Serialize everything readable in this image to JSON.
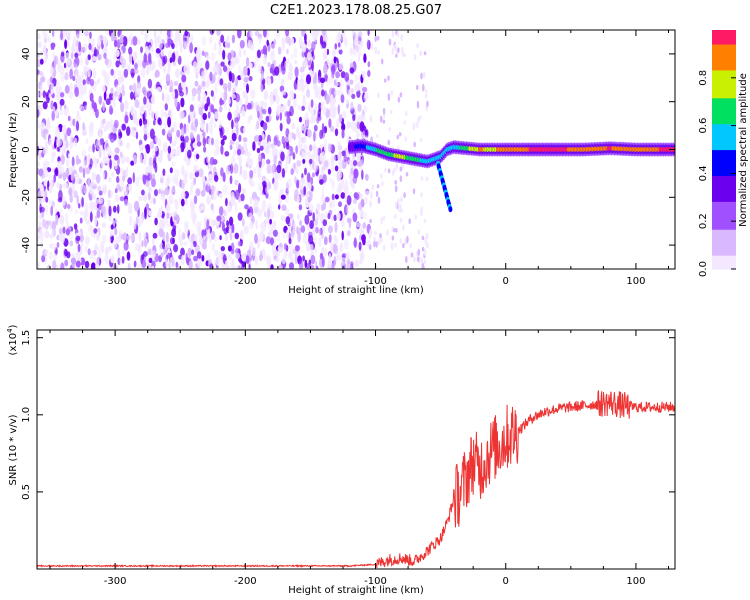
{
  "title": "C2E1.2023.178.08.25.G07",
  "colors": {
    "snr_line": "#ee3333",
    "cmap": [
      "#f3e8ff",
      "#d9b8ff",
      "#a050ff",
      "#6a00ee",
      "#0000ff",
      "#00c8ff",
      "#00e060",
      "#c8f000",
      "#ff8000",
      "#ff1a66"
    ]
  },
  "chart_data": [
    {
      "type": "heatmap",
      "xlabel": "Height of straight line (km)",
      "ylabel": "Frequency (Hz)",
      "xlim": [
        -360,
        130
      ],
      "ylim": [
        -50,
        50
      ],
      "xticks": [
        -300,
        -200,
        -100,
        0,
        100
      ],
      "yticks": [
        -40,
        -20,
        0,
        20,
        40
      ],
      "colorbar": {
        "label": "Normalized spectral amplitude",
        "range": [
          0,
          1
        ],
        "ticks": [
          "0.0",
          "0.2",
          "0.4",
          "0.6",
          "0.8"
        ],
        "tick_values": [
          0.0,
          0.2,
          0.4,
          0.6,
          0.8
        ]
      },
      "signal_track": [
        {
          "x": -120,
          "y": 1,
          "a": 0.35
        },
        {
          "x": -110,
          "y": 1.5,
          "a": 0.45
        },
        {
          "x": -100,
          "y": 0,
          "a": 0.6
        },
        {
          "x": -90,
          "y": -2,
          "a": 0.7
        },
        {
          "x": -80,
          "y": -3,
          "a": 0.75
        },
        {
          "x": -70,
          "y": -4,
          "a": 0.65
        },
        {
          "x": -60,
          "y": -5,
          "a": 0.55
        },
        {
          "x": -50,
          "y": -3,
          "a": 0.5
        },
        {
          "x": -45,
          "y": 0,
          "a": 0.5
        },
        {
          "x": -40,
          "y": 1,
          "a": 0.55
        },
        {
          "x": -30,
          "y": 0.5,
          "a": 0.7
        },
        {
          "x": -20,
          "y": 0,
          "a": 0.85
        },
        {
          "x": -10,
          "y": 0,
          "a": 0.8
        },
        {
          "x": 0,
          "y": 0,
          "a": 0.9
        },
        {
          "x": 20,
          "y": 0,
          "a": 0.95
        },
        {
          "x": 40,
          "y": 0,
          "a": 0.97
        },
        {
          "x": 60,
          "y": 0,
          "a": 0.9
        },
        {
          "x": 80,
          "y": 0.5,
          "a": 0.95
        },
        {
          "x": 100,
          "y": 0,
          "a": 0.9
        },
        {
          "x": 120,
          "y": 0,
          "a": 0.95
        },
        {
          "x": 130,
          "y": 0,
          "a": 0.95
        }
      ]
    },
    {
      "type": "line",
      "xlabel": "Height of straight line (km)",
      "ylabel": "SNR (10 * v/v)",
      "ylabel_exponent": "(x10",
      "ylabel_exponent_power": "4",
      "ylabel_exponent_close": ")",
      "xlim": [
        -360,
        130
      ],
      "ylim": [
        0,
        1.55
      ],
      "xticks": [
        -300,
        -200,
        -100,
        0,
        100
      ],
      "yticks": [
        0.5,
        1.0,
        1.5
      ],
      "ytick_labels": [
        "0.5",
        "1.0",
        "1.5"
      ],
      "series": [
        {
          "x": [
            -360,
            -300,
            -200,
            -150,
            -120,
            -100,
            -90,
            -80,
            -70,
            -60,
            -50,
            -45,
            -40,
            -35,
            -30,
            -25,
            -20,
            -15,
            -10,
            -5,
            0,
            10,
            20,
            30,
            40,
            60,
            80,
            90,
            100,
            110,
            120,
            130
          ],
          "y": [
            0.02,
            0.02,
            0.02,
            0.02,
            0.02,
            0.03,
            0.06,
            0.07,
            0.05,
            0.12,
            0.2,
            0.3,
            0.45,
            0.5,
            0.6,
            0.7,
            0.65,
            0.72,
            0.78,
            0.8,
            0.85,
            0.9,
            0.98,
            1.02,
            1.04,
            1.06,
            1.08,
            1.06,
            1.05,
            1.05,
            1.05,
            1.05
          ]
        }
      ]
    }
  ]
}
